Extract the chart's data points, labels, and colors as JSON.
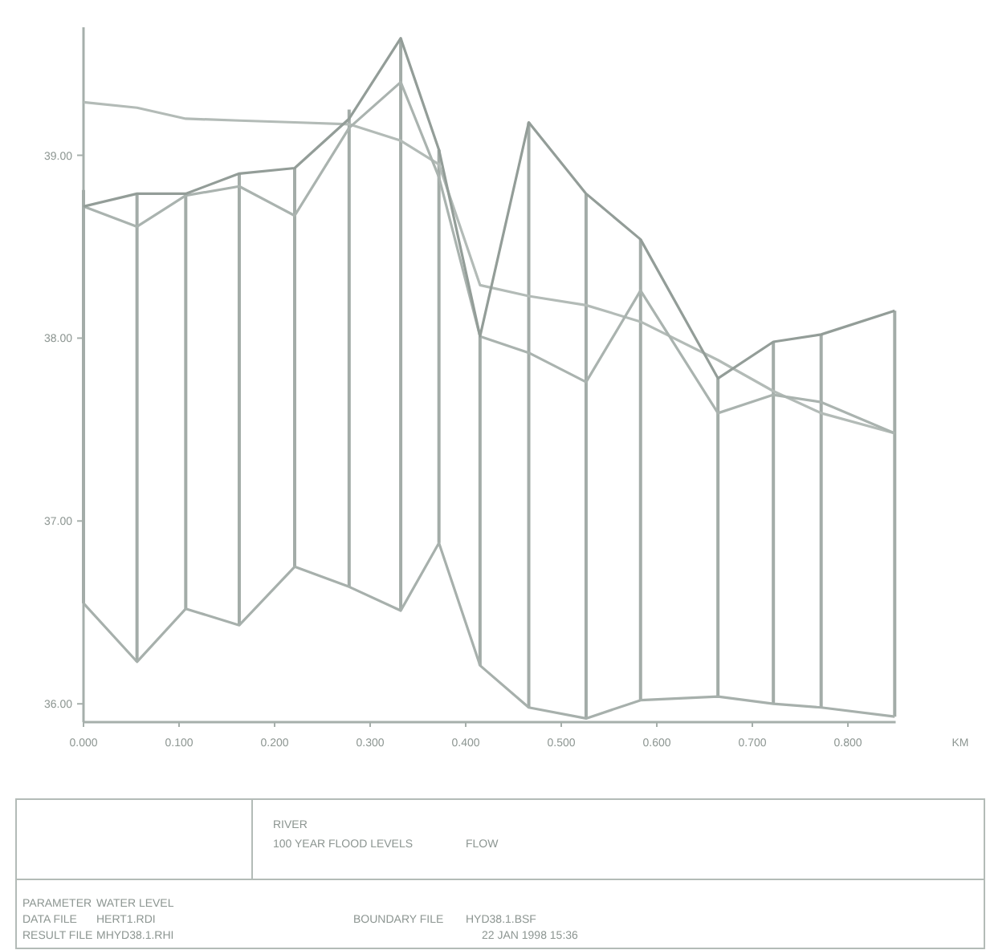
{
  "chart_data": {
    "type": "line",
    "xlabel": "KM",
    "x": [
      0,
      0.056,
      0.107,
      0.163,
      0.221,
      0.278,
      0.332,
      0.372,
      0.415,
      0.466,
      0.526,
      0.583,
      0.664,
      0.722,
      0.772,
      0.849
    ],
    "series": [
      {
        "type": "bar",
        "color": "#a3aca8",
        "base": [
          36.55,
          36.23,
          36.52,
          36.43,
          36.75,
          36.64,
          36.51,
          36.88,
          36.21,
          35.98,
          35.92,
          36.02,
          36.04,
          36.0,
          35.98,
          35.93
        ],
        "values": [
          2.26,
          2.56,
          2.27,
          2.47,
          2.18,
          2.61,
          3.13,
          2.15,
          1.8,
          3.2,
          2.87,
          2.52,
          1.74,
          1.98,
          2.04,
          2.22
        ]
      },
      {
        "color": "#a7b0ac",
        "values": [
          36.55,
          36.23,
          36.52,
          36.43,
          36.75,
          36.64,
          36.51,
          36.88,
          36.21,
          35.98,
          35.92,
          36.02,
          36.04,
          36.0,
          35.98,
          35.93
        ]
      },
      {
        "color": "#b3bbb7",
        "values": [
          39.29,
          39.26,
          39.2,
          39.19,
          39.18,
          39.17,
          39.08,
          38.95,
          38.29,
          38.23,
          38.18,
          38.09,
          37.88,
          37.71,
          37.59,
          37.48
        ]
      },
      {
        "color": "#aab3af",
        "values": [
          38.72,
          38.61,
          38.78,
          38.83,
          38.67,
          39.15,
          39.4,
          38.88,
          38.01,
          37.92,
          37.76,
          38.26,
          37.59,
          37.69,
          37.65,
          37.48
        ]
      },
      {
        "color": "#939d98",
        "values": [
          38.72,
          38.79,
          38.79,
          38.9,
          38.93,
          39.2,
          39.64,
          39.03,
          38.01,
          39.18,
          38.79,
          38.54,
          37.78,
          37.98,
          38.02,
          38.15
        ]
      }
    ],
    "xlim": [
      0,
      0.85
    ],
    "xticks": [
      {
        "value": 0,
        "label": "0.000"
      },
      {
        "value": 0.1,
        "label": "0.100"
      },
      {
        "value": 0.2,
        "label": "0.200"
      },
      {
        "value": 0.3,
        "label": "0.300"
      },
      {
        "value": 0.4,
        "label": "0.400"
      },
      {
        "value": 0.5,
        "label": "0.500"
      },
      {
        "value": 0.6,
        "label": "0.600"
      },
      {
        "value": 0.7,
        "label": "0.700"
      },
      {
        "value": 0.8,
        "label": "0.800"
      }
    ],
    "ylim": [
      35.9,
      39.7
    ],
    "yticks": [
      {
        "value": 36,
        "label": "36.00"
      },
      {
        "value": 37,
        "label": "37.00"
      },
      {
        "value": 38,
        "label": "38.00"
      },
      {
        "value": 39,
        "label": "39.00"
      }
    ],
    "line_style": "solid",
    "annotations": [
      "RIVER",
      "100 YEAR FLOOD LEVELS",
      "FLOW",
      "PARAMETER",
      "WATER LEVEL",
      "DATA FILE",
      "HERT1.RDI",
      "RESULT FILE",
      "MHYD38.1.RHI",
      "BOUNDARY FILE",
      "HYD38.1.BSF",
      "22 JAN 1998 15:36"
    ]
  }
}
